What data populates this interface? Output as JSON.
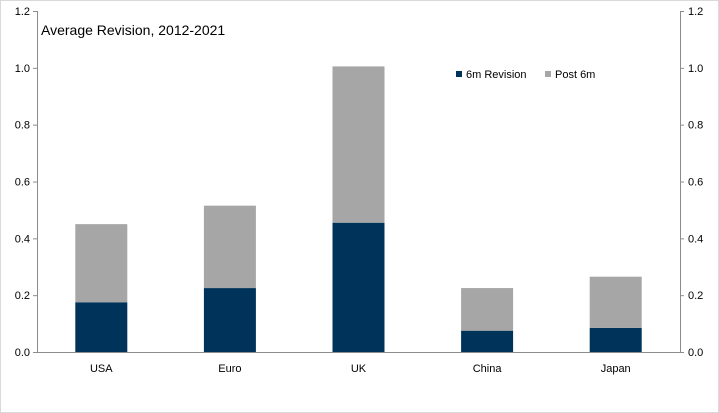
{
  "chart_data": {
    "type": "bar",
    "stacked": true,
    "title": "Average Revision, 2012-2021",
    "xlabel": "",
    "ylabel": "",
    "categories": [
      "USA",
      "Euro",
      "UK",
      "China",
      "Japan"
    ],
    "series": [
      {
        "name": "6m Revision",
        "color": "#003359",
        "values": [
          0.175,
          0.225,
          0.455,
          0.075,
          0.085
        ]
      },
      {
        "name": "Post 6m",
        "color": "#a6a6a6",
        "values": [
          0.275,
          0.29,
          0.55,
          0.15,
          0.18
        ]
      }
    ],
    "ylim": [
      0,
      1.2
    ],
    "yticks": [
      "0.0",
      "0.2",
      "0.4",
      "0.6",
      "0.8",
      "1.0",
      "1.2"
    ],
    "secondary_axis": true,
    "grid": false,
    "legend_position": "top-right"
  }
}
